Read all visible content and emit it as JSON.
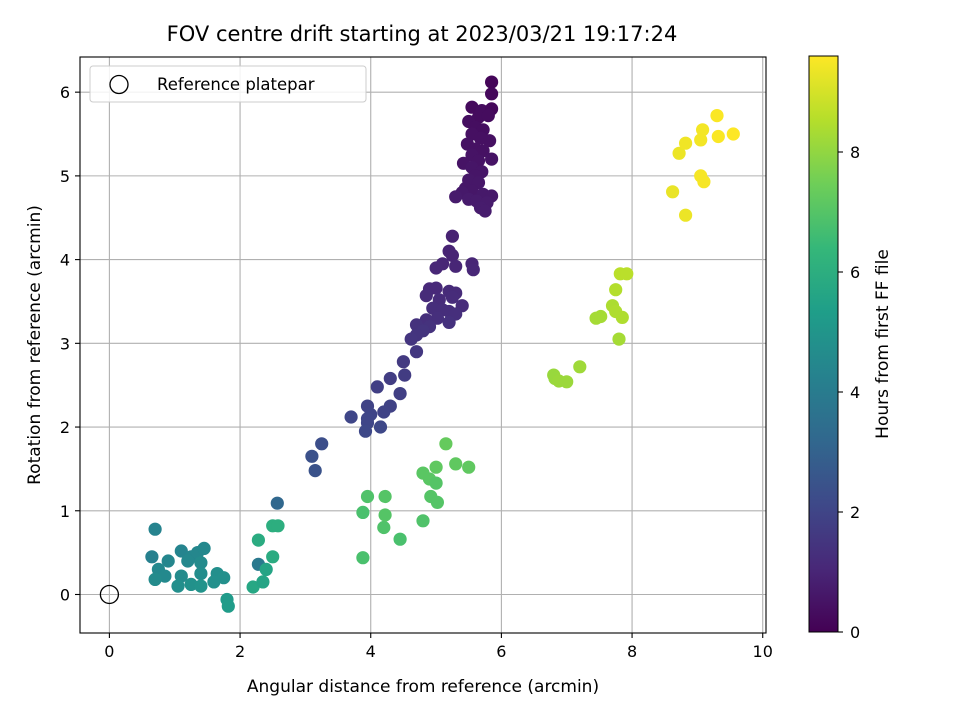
{
  "chart_data": {
    "type": "scatter",
    "title": "FOV centre drift starting at 2023/03/21 19:17:24",
    "xlabel": "Angular distance from reference (arcmin)",
    "ylabel": "Rotation from reference (arcmin)",
    "xlim": [
      -0.45,
      10.05
    ],
    "ylim": [
      -0.46,
      6.42
    ],
    "xticks": [
      0,
      2,
      4,
      6,
      8,
      10
    ],
    "yticks": [
      0,
      1,
      2,
      3,
      4,
      5,
      6
    ],
    "grid": true,
    "legend": {
      "placement": "top-left",
      "entries": [
        {
          "label": "Reference platepar",
          "marker": "open-circle"
        }
      ]
    },
    "reference_point": {
      "x": 0,
      "y": 0
    },
    "colorbar": {
      "label": "Hours from first FF file",
      "colormap": "viridis",
      "range": [
        0,
        9.6
      ],
      "ticks": [
        0,
        2,
        4,
        6,
        8
      ]
    },
    "colormap_stops": [
      "#440154",
      "#482878",
      "#3e4989",
      "#31688e",
      "#26828e",
      "#1f9e89",
      "#35b779",
      "#6ece58",
      "#b5de2b",
      "#fde725"
    ],
    "points": [
      {
        "x": 5.85,
        "y": 6.12,
        "t": 0.15
      },
      {
        "x": 5.85,
        "y": 5.98,
        "t": 0.2
      },
      {
        "x": 5.55,
        "y": 5.82,
        "t": 0.25
      },
      {
        "x": 5.7,
        "y": 5.78,
        "t": 0.3
      },
      {
        "x": 5.85,
        "y": 5.8,
        "t": 0.2
      },
      {
        "x": 5.65,
        "y": 5.7,
        "t": 0.3
      },
      {
        "x": 5.8,
        "y": 5.72,
        "t": 0.3
      },
      {
        "x": 5.5,
        "y": 5.65,
        "t": 0.35
      },
      {
        "x": 5.6,
        "y": 5.58,
        "t": 0.35
      },
      {
        "x": 5.72,
        "y": 5.55,
        "t": 0.35
      },
      {
        "x": 5.55,
        "y": 5.5,
        "t": 0.4
      },
      {
        "x": 5.68,
        "y": 5.45,
        "t": 0.4
      },
      {
        "x": 5.82,
        "y": 5.42,
        "t": 0.4
      },
      {
        "x": 5.48,
        "y": 5.38,
        "t": 0.45
      },
      {
        "x": 5.6,
        "y": 5.32,
        "t": 0.45
      },
      {
        "x": 5.72,
        "y": 5.3,
        "t": 0.45
      },
      {
        "x": 5.55,
        "y": 5.25,
        "t": 0.5
      },
      {
        "x": 5.85,
        "y": 5.2,
        "t": 0.5
      },
      {
        "x": 5.65,
        "y": 5.18,
        "t": 0.5
      },
      {
        "x": 5.42,
        "y": 5.15,
        "t": 0.5
      },
      {
        "x": 5.55,
        "y": 5.1,
        "t": 0.55
      },
      {
        "x": 5.7,
        "y": 5.05,
        "t": 0.55
      },
      {
        "x": 5.6,
        "y": 5.0,
        "t": 0.55
      },
      {
        "x": 5.5,
        "y": 4.95,
        "t": 0.6
      },
      {
        "x": 5.65,
        "y": 4.92,
        "t": 0.6
      },
      {
        "x": 5.45,
        "y": 4.85,
        "t": 0.6
      },
      {
        "x": 5.55,
        "y": 4.82,
        "t": 0.6
      },
      {
        "x": 5.4,
        "y": 4.8,
        "t": 0.65
      },
      {
        "x": 5.72,
        "y": 4.78,
        "t": 0.65
      },
      {
        "x": 5.85,
        "y": 4.76,
        "t": 0.65
      },
      {
        "x": 5.3,
        "y": 4.75,
        "t": 0.7
      },
      {
        "x": 5.5,
        "y": 4.72,
        "t": 0.7
      },
      {
        "x": 5.62,
        "y": 4.7,
        "t": 0.7
      },
      {
        "x": 5.78,
        "y": 4.68,
        "t": 0.7
      },
      {
        "x": 5.68,
        "y": 4.62,
        "t": 0.75
      },
      {
        "x": 5.75,
        "y": 4.58,
        "t": 0.75
      },
      {
        "x": 5.25,
        "y": 4.28,
        "t": 0.9
      },
      {
        "x": 5.2,
        "y": 4.1,
        "t": 0.95
      },
      {
        "x": 5.25,
        "y": 4.05,
        "t": 0.95
      },
      {
        "x": 5.1,
        "y": 3.95,
        "t": 1.0
      },
      {
        "x": 5.3,
        "y": 3.92,
        "t": 1.0
      },
      {
        "x": 5.55,
        "y": 3.95,
        "t": 1.0
      },
      {
        "x": 5.0,
        "y": 3.9,
        "t": 1.05
      },
      {
        "x": 5.57,
        "y": 3.88,
        "t": 1.05
      },
      {
        "x": 4.9,
        "y": 3.65,
        "t": 1.1
      },
      {
        "x": 5.0,
        "y": 3.66,
        "t": 1.1
      },
      {
        "x": 5.2,
        "y": 3.62,
        "t": 1.15
      },
      {
        "x": 5.3,
        "y": 3.6,
        "t": 1.15
      },
      {
        "x": 4.85,
        "y": 3.57,
        "t": 1.15
      },
      {
        "x": 5.25,
        "y": 3.55,
        "t": 1.2
      },
      {
        "x": 5.05,
        "y": 3.52,
        "t": 1.2
      },
      {
        "x": 5.4,
        "y": 3.45,
        "t": 1.2
      },
      {
        "x": 4.95,
        "y": 3.42,
        "t": 1.25
      },
      {
        "x": 5.1,
        "y": 3.4,
        "t": 1.25
      },
      {
        "x": 5.2,
        "y": 3.38,
        "t": 1.25
      },
      {
        "x": 5.3,
        "y": 3.35,
        "t": 1.3
      },
      {
        "x": 5.02,
        "y": 3.3,
        "t": 1.3
      },
      {
        "x": 4.85,
        "y": 3.28,
        "t": 1.3
      },
      {
        "x": 5.2,
        "y": 3.25,
        "t": 1.35
      },
      {
        "x": 4.7,
        "y": 3.22,
        "t": 1.4
      },
      {
        "x": 4.9,
        "y": 3.2,
        "t": 1.4
      },
      {
        "x": 4.8,
        "y": 3.15,
        "t": 1.45
      },
      {
        "x": 4.7,
        "y": 3.1,
        "t": 1.45
      },
      {
        "x": 4.62,
        "y": 3.05,
        "t": 1.5
      },
      {
        "x": 4.7,
        "y": 2.9,
        "t": 1.55
      },
      {
        "x": 4.5,
        "y": 2.78,
        "t": 1.65
      },
      {
        "x": 4.52,
        "y": 2.62,
        "t": 1.7
      },
      {
        "x": 4.3,
        "y": 2.58,
        "t": 1.75
      },
      {
        "x": 4.1,
        "y": 2.48,
        "t": 1.8
      },
      {
        "x": 4.45,
        "y": 2.4,
        "t": 1.8
      },
      {
        "x": 4.3,
        "y": 2.25,
        "t": 1.9
      },
      {
        "x": 3.95,
        "y": 2.25,
        "t": 1.95
      },
      {
        "x": 4.2,
        "y": 2.18,
        "t": 1.95
      },
      {
        "x": 4.0,
        "y": 2.15,
        "t": 2.0
      },
      {
        "x": 3.7,
        "y": 2.12,
        "t": 2.05
      },
      {
        "x": 3.95,
        "y": 2.1,
        "t": 2.05
      },
      {
        "x": 3.95,
        "y": 2.05,
        "t": 2.05
      },
      {
        "x": 4.15,
        "y": 2.0,
        "t": 2.1
      },
      {
        "x": 3.92,
        "y": 1.95,
        "t": 2.1
      },
      {
        "x": 3.25,
        "y": 1.8,
        "t": 2.3
      },
      {
        "x": 3.1,
        "y": 1.65,
        "t": 2.4
      },
      {
        "x": 3.15,
        "y": 1.48,
        "t": 2.45
      },
      {
        "x": 2.57,
        "y": 1.09,
        "t": 3.2
      },
      {
        "x": 2.28,
        "y": 0.36,
        "t": 3.9
      },
      {
        "x": 0.7,
        "y": 0.78,
        "t": 4.3
      },
      {
        "x": 0.65,
        "y": 0.45,
        "t": 4.2
      },
      {
        "x": 0.9,
        "y": 0.4,
        "t": 4.4
      },
      {
        "x": 1.1,
        "y": 0.52,
        "t": 4.35
      },
      {
        "x": 1.25,
        "y": 0.45,
        "t": 4.4
      },
      {
        "x": 1.35,
        "y": 0.5,
        "t": 4.45
      },
      {
        "x": 1.45,
        "y": 0.55,
        "t": 4.5
      },
      {
        "x": 1.2,
        "y": 0.4,
        "t": 4.5
      },
      {
        "x": 1.4,
        "y": 0.38,
        "t": 4.6
      },
      {
        "x": 0.75,
        "y": 0.3,
        "t": 4.5
      },
      {
        "x": 0.85,
        "y": 0.22,
        "t": 4.55
      },
      {
        "x": 0.7,
        "y": 0.18,
        "t": 4.6
      },
      {
        "x": 1.1,
        "y": 0.22,
        "t": 4.6
      },
      {
        "x": 1.4,
        "y": 0.25,
        "t": 4.7
      },
      {
        "x": 1.65,
        "y": 0.25,
        "t": 4.75
      },
      {
        "x": 1.75,
        "y": 0.2,
        "t": 4.8
      },
      {
        "x": 1.6,
        "y": 0.15,
        "t": 4.8
      },
      {
        "x": 1.05,
        "y": 0.1,
        "t": 4.75
      },
      {
        "x": 1.25,
        "y": 0.12,
        "t": 4.85
      },
      {
        "x": 1.4,
        "y": 0.1,
        "t": 4.9
      },
      {
        "x": 1.8,
        "y": -0.06,
        "t": 5.2
      },
      {
        "x": 1.82,
        "y": -0.14,
        "t": 5.25
      },
      {
        "x": 2.2,
        "y": 0.09,
        "t": 5.7
      },
      {
        "x": 2.35,
        "y": 0.15,
        "t": 5.6
      },
      {
        "x": 2.4,
        "y": 0.3,
        "t": 5.6
      },
      {
        "x": 2.5,
        "y": 0.45,
        "t": 5.9
      },
      {
        "x": 2.28,
        "y": 0.65,
        "t": 5.9
      },
      {
        "x": 2.5,
        "y": 0.82,
        "t": 6.0
      },
      {
        "x": 2.58,
        "y": 0.82,
        "t": 6.0
      },
      {
        "x": 3.88,
        "y": 0.44,
        "t": 6.8
      },
      {
        "x": 3.88,
        "y": 0.98,
        "t": 6.8
      },
      {
        "x": 3.95,
        "y": 1.17,
        "t": 6.9
      },
      {
        "x": 4.2,
        "y": 0.8,
        "t": 6.9
      },
      {
        "x": 4.22,
        "y": 0.95,
        "t": 7.0
      },
      {
        "x": 4.22,
        "y": 1.17,
        "t": 7.0
      },
      {
        "x": 4.45,
        "y": 0.66,
        "t": 6.8
      },
      {
        "x": 4.8,
        "y": 0.88,
        "t": 6.9
      },
      {
        "x": 4.8,
        "y": 1.45,
        "t": 7.1
      },
      {
        "x": 4.9,
        "y": 1.38,
        "t": 7.1
      },
      {
        "x": 5.0,
        "y": 1.33,
        "t": 7.0
      },
      {
        "x": 4.92,
        "y": 1.17,
        "t": 7.0
      },
      {
        "x": 5.02,
        "y": 1.1,
        "t": 7.0
      },
      {
        "x": 5.0,
        "y": 1.52,
        "t": 7.2
      },
      {
        "x": 5.15,
        "y": 1.8,
        "t": 7.3
      },
      {
        "x": 5.3,
        "y": 1.56,
        "t": 7.2
      },
      {
        "x": 5.5,
        "y": 1.52,
        "t": 7.2
      },
      {
        "x": 6.8,
        "y": 2.62,
        "t": 8.1
      },
      {
        "x": 6.82,
        "y": 2.58,
        "t": 8.1
      },
      {
        "x": 6.88,
        "y": 2.55,
        "t": 8.15
      },
      {
        "x": 7.0,
        "y": 2.54,
        "t": 8.15
      },
      {
        "x": 7.2,
        "y": 2.72,
        "t": 8.2
      },
      {
        "x": 7.45,
        "y": 3.3,
        "t": 8.3
      },
      {
        "x": 7.52,
        "y": 3.32,
        "t": 8.3
      },
      {
        "x": 7.7,
        "y": 3.45,
        "t": 8.4
      },
      {
        "x": 7.75,
        "y": 3.38,
        "t": 8.45
      },
      {
        "x": 7.75,
        "y": 3.64,
        "t": 8.5
      },
      {
        "x": 7.85,
        "y": 3.31,
        "t": 8.45
      },
      {
        "x": 7.8,
        "y": 3.05,
        "t": 8.3
      },
      {
        "x": 7.82,
        "y": 3.83,
        "t": 8.6
      },
      {
        "x": 7.92,
        "y": 3.83,
        "t": 8.6
      },
      {
        "x": 8.62,
        "y": 4.81,
        "t": 9.3
      },
      {
        "x": 8.72,
        "y": 5.27,
        "t": 9.35
      },
      {
        "x": 8.82,
        "y": 5.39,
        "t": 9.4
      },
      {
        "x": 8.82,
        "y": 4.53,
        "t": 9.35
      },
      {
        "x": 9.05,
        "y": 5.43,
        "t": 9.45
      },
      {
        "x": 9.08,
        "y": 5.55,
        "t": 9.45
      },
      {
        "x": 9.05,
        "y": 5.0,
        "t": 9.5
      },
      {
        "x": 9.1,
        "y": 4.93,
        "t": 9.5
      },
      {
        "x": 9.3,
        "y": 5.72,
        "t": 9.55
      },
      {
        "x": 9.32,
        "y": 5.47,
        "t": 9.55
      },
      {
        "x": 9.55,
        "y": 5.5,
        "t": 9.6
      }
    ]
  }
}
